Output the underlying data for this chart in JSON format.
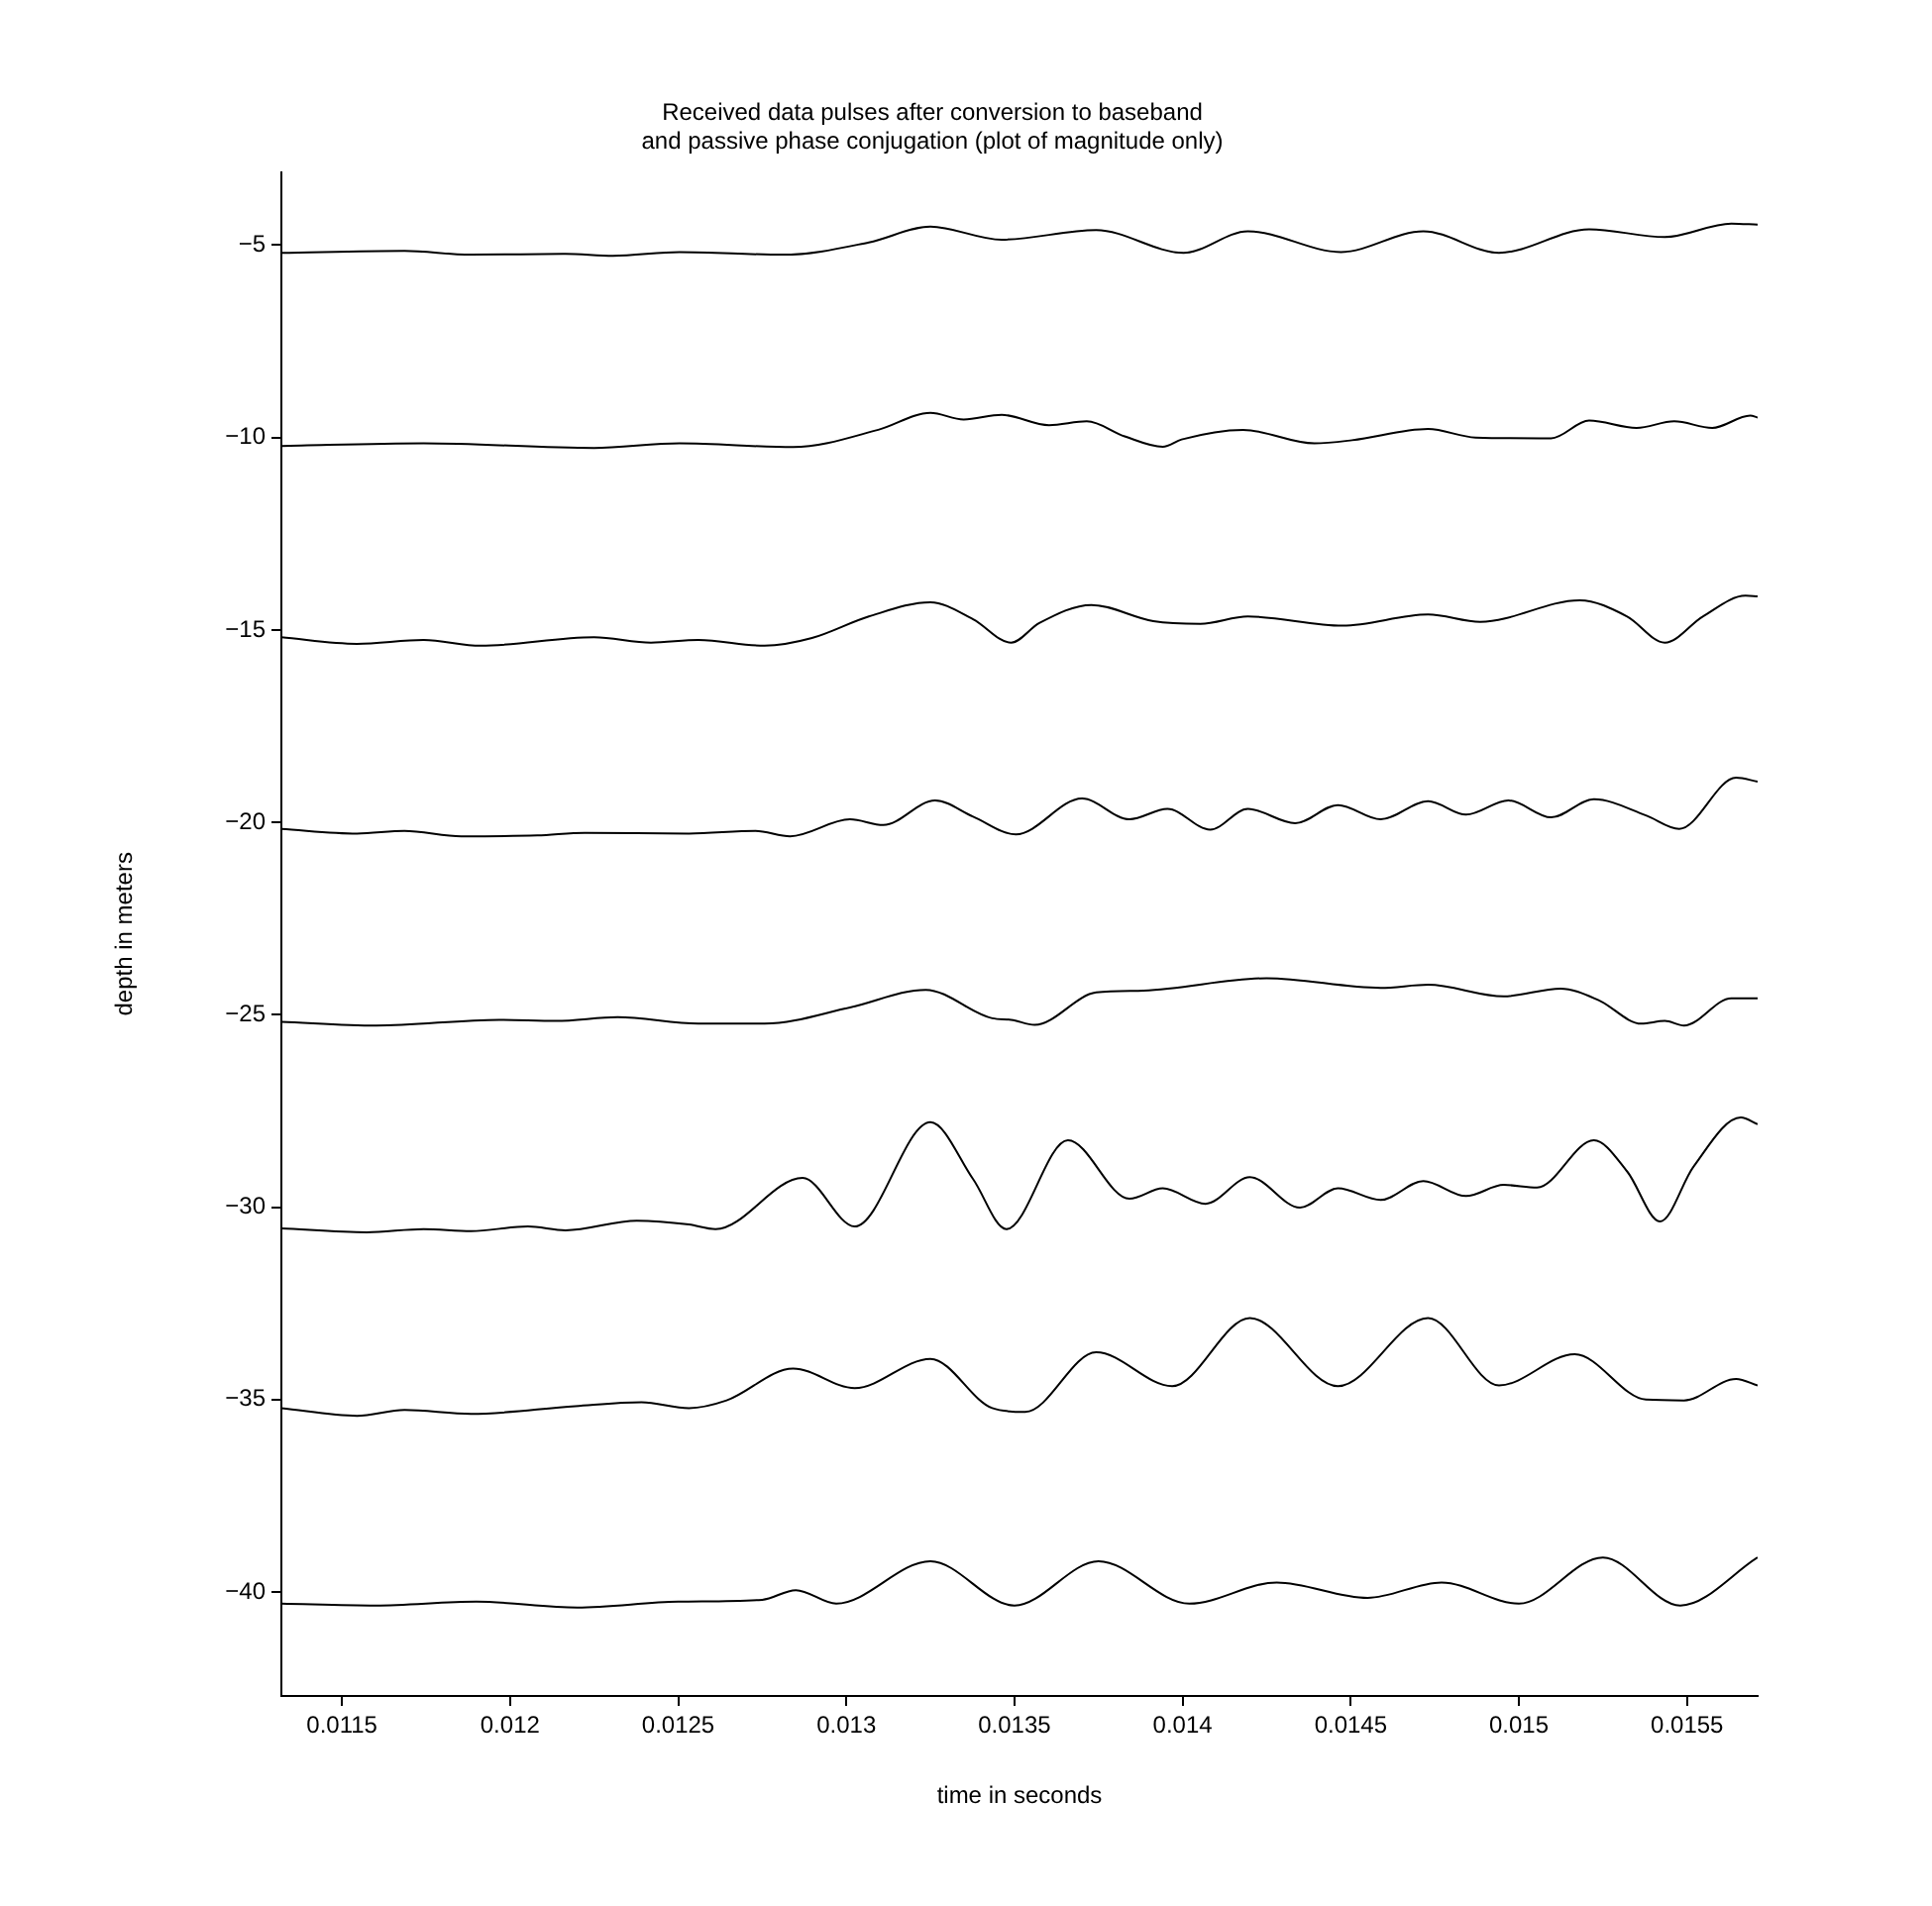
{
  "chart_data": {
    "type": "line",
    "title": "Received data pulses after conversion to baseband\nand passive phase conjugation (plot of magnitude only)",
    "xlabel": "time in seconds",
    "ylabel": "depth in meters",
    "xlim": [
      0.01132,
      0.01571
    ],
    "ylim": [
      -42.7,
      -3.1
    ],
    "xticks": [
      0.0115,
      0.012,
      0.0125,
      0.013,
      0.0135,
      0.014,
      0.0145,
      0.015,
      0.0155
    ],
    "yticks": [
      -40,
      -35,
      -30,
      -25,
      -20,
      -15,
      -10,
      -5
    ],
    "grid": false,
    "legend": false,
    "marker": "none",
    "line_style": "solid",
    "series": [
      {
        "color": "#000000",
        "x": [
          0.01132,
          0.011686,
          0.011884,
          0.012165,
          0.012306,
          0.012504,
          0.012814,
          0.013067,
          0.01325,
          0.013462,
          0.013743,
          0.014003,
          0.014194,
          0.014471,
          0.014716,
          0.014941,
          0.015209,
          0.015434,
          0.015632,
          0.01571
        ],
        "values": [
          -5.2,
          -5.15,
          -5.25,
          -5.23,
          -5.28,
          -5.18,
          -5.25,
          -4.93,
          -4.52,
          -4.86,
          -4.61,
          -5.2,
          -4.64,
          -5.18,
          -4.64,
          -5.2,
          -4.59,
          -4.79,
          -4.44,
          -4.47
        ]
      },
      {
        "color": "#000000",
        "x": [
          0.01132,
          0.011743,
          0.01225,
          0.012504,
          0.012842,
          0.013095,
          0.01325,
          0.013349,
          0.013462,
          0.013603,
          0.013715,
          0.013828,
          0.013941,
          0.013997,
          0.01418,
          0.014392,
          0.014504,
          0.01473,
          0.014871,
          0.015096,
          0.015209,
          0.01535,
          0.015462,
          0.015575,
          0.015688,
          0.01571
        ],
        "values": [
          -10.22,
          -10.15,
          -10.27,
          -10.15,
          -10.25,
          -9.8,
          -9.36,
          -9.53,
          -9.41,
          -9.68,
          -9.58,
          -9.97,
          -10.24,
          -10.05,
          -9.8,
          -10.15,
          -10.07,
          -9.78,
          -10,
          -10.02,
          -9.56,
          -9.75,
          -9.58,
          -9.75,
          -9.43,
          -9.48
        ]
      },
      {
        "color": "#000000",
        "x": [
          0.01132,
          0.011545,
          0.011743,
          0.011912,
          0.01225,
          0.012419,
          0.01256,
          0.012757,
          0.012898,
          0.013067,
          0.01325,
          0.013377,
          0.01349,
          0.013574,
          0.013729,
          0.013913,
          0.014053,
          0.014194,
          0.014476,
          0.01473,
          0.014885,
          0.015181,
          0.015322,
          0.015434,
          0.015547,
          0.015674,
          0.01571
        ],
        "values": [
          -15.19,
          -15.36,
          -15.26,
          -15.41,
          -15.19,
          -15.33,
          -15.26,
          -15.41,
          -15.21,
          -14.65,
          -14.28,
          -14.72,
          -15.33,
          -14.82,
          -14.35,
          -14.77,
          -14.84,
          -14.65,
          -14.89,
          -14.6,
          -14.79,
          -14.23,
          -14.65,
          -15.33,
          -14.65,
          -14.11,
          -14.13
        ]
      },
      {
        "color": "#000000",
        "x": [
          0.01132,
          0.011545,
          0.011686,
          0.011855,
          0.012081,
          0.012222,
          0.012532,
          0.01273,
          0.012833,
          0.013011,
          0.01311,
          0.013264,
          0.013377,
          0.013504,
          0.013701,
          0.013842,
          0.013955,
          0.014082,
          0.014194,
          0.014335,
          0.014462,
          0.014589,
          0.01473,
          0.014843,
          0.014969,
          0.015096,
          0.015223,
          0.015378,
          0.015477,
          0.015646,
          0.01571
        ],
        "values": [
          -20.17,
          -20.29,
          -20.22,
          -20.36,
          -20.34,
          -20.27,
          -20.29,
          -20.22,
          -20.36,
          -19.92,
          -20.07,
          -19.43,
          -19.85,
          -20.31,
          -19.38,
          -19.92,
          -19.65,
          -20.19,
          -19.65,
          -20.02,
          -19.55,
          -19.92,
          -19.45,
          -19.8,
          -19.43,
          -19.87,
          -19.4,
          -19.82,
          -20.17,
          -18.84,
          -18.94
        ]
      },
      {
        "color": "#000000",
        "x": [
          0.01132,
          0.011602,
          0.011968,
          0.012137,
          0.01232,
          0.01256,
          0.012757,
          0.013011,
          0.013236,
          0.013434,
          0.01349,
          0.01356,
          0.013743,
          0.013884,
          0.01425,
          0.014589,
          0.01473,
          0.014955,
          0.015124,
          0.015237,
          0.015364,
          0.015434,
          0.015491,
          0.015632,
          0.01571
        ],
        "values": [
          -25.18,
          -25.28,
          -25.13,
          -25.16,
          -25.06,
          -25.23,
          -25.23,
          -24.81,
          -24.35,
          -25.09,
          -25.13,
          -25.26,
          -24.42,
          -24.37,
          -24.05,
          -24.3,
          -24.22,
          -24.52,
          -24.32,
          -24.62,
          -25.23,
          -25.16,
          -25.28,
          -24.57,
          -24.57
        ]
      },
      {
        "color": "#000000",
        "x": [
          0.01132,
          0.011574,
          0.011743,
          0.011884,
          0.012053,
          0.012165,
          0.012377,
          0.012532,
          0.012611,
          0.01287,
          0.013025,
          0.01325,
          0.013377,
          0.013476,
          0.013659,
          0.013842,
          0.013941,
          0.014068,
          0.0142,
          0.014349,
          0.014462,
          0.014589,
          0.014716,
          0.014843,
          0.014955,
          0.015054,
          0.015223,
          0.015322,
          0.01542,
          0.015519,
          0.01566,
          0.01571
        ],
        "values": [
          -30.55,
          -30.65,
          -30.57,
          -30.62,
          -30.5,
          -30.6,
          -30.35,
          -30.45,
          -30.57,
          -29.24,
          -30.5,
          -27.79,
          -29.27,
          -30.57,
          -28.26,
          -29.78,
          -29.51,
          -29.91,
          -29.22,
          -30.01,
          -29.51,
          -29.81,
          -29.32,
          -29.71,
          -29.42,
          -29.49,
          -28.26,
          -29.07,
          -30.37,
          -28.95,
          -27.67,
          -27.84
        ]
      },
      {
        "color": "#000000",
        "x": [
          0.01132,
          0.011545,
          0.011686,
          0.011884,
          0.012194,
          0.012391,
          0.012532,
          0.012644,
          0.012842,
          0.013025,
          0.01325,
          0.013434,
          0.013532,
          0.013743,
          0.013969,
          0.0142,
          0.014462,
          0.01473,
          0.014941,
          0.015166,
          0.015378,
          0.015491,
          0.015646,
          0.01571
        ],
        "values": [
          -35.22,
          -35.42,
          -35.27,
          -35.37,
          -35.17,
          -35.07,
          -35.22,
          -35.02,
          -34.19,
          -34.7,
          -33.94,
          -35.22,
          -35.32,
          -33.77,
          -34.65,
          -32.88,
          -34.65,
          -32.88,
          -34.63,
          -33.82,
          -35,
          -35.02,
          -34.46,
          -34.63
        ]
      },
      {
        "color": "#000000",
        "x": [
          0.01132,
          0.0116,
          0.0119,
          0.0122,
          0.0125,
          0.01275,
          0.01285,
          0.01297,
          0.01325,
          0.0135,
          0.01375,
          0.01402,
          0.01428,
          0.01455,
          0.01477,
          0.015,
          0.01525,
          0.01548,
          0.01571
        ],
        "values": [
          -40.3,
          -40.35,
          -40.25,
          -40.4,
          -40.25,
          -40.2,
          -39.95,
          -40.3,
          -39.2,
          -40.35,
          -39.2,
          -40.3,
          -39.75,
          -40.15,
          -39.75,
          -40.3,
          -39.1,
          -40.35,
          -39.1
        ]
      }
    ]
  }
}
